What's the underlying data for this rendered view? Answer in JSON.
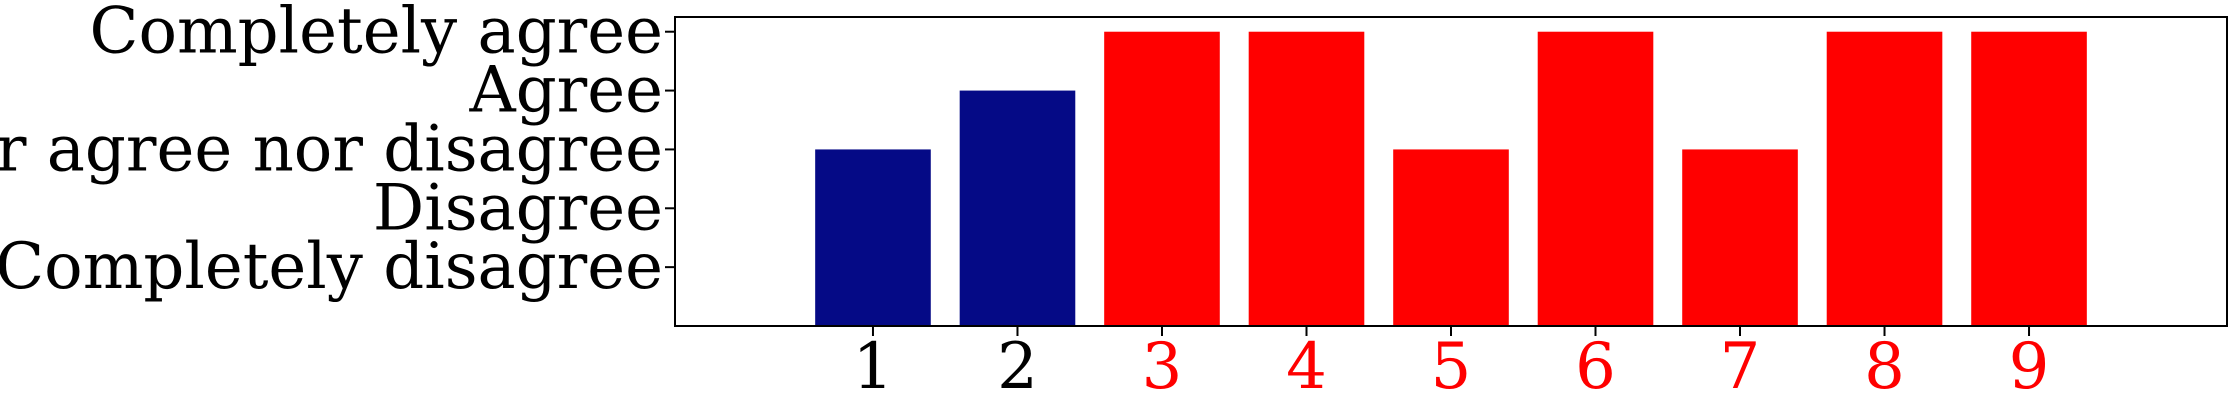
{
  "chart_data": {
    "type": "bar",
    "title": "",
    "xlabel": "",
    "ylabel": "",
    "categories": [
      "1",
      "2",
      "3",
      "4",
      "5",
      "6",
      "7",
      "8",
      "9"
    ],
    "values": [
      3,
      4,
      5,
      5,
      3,
      5,
      3,
      5,
      5
    ],
    "y_ticks": [
      {
        "value": 1,
        "label": "Completely disagree"
      },
      {
        "value": 2,
        "label": "Disagree"
      },
      {
        "value": 3,
        "label": "Neither agree nor disagree"
      },
      {
        "value": 4,
        "label": "Agree"
      },
      {
        "value": 5,
        "label": "Completely agree"
      }
    ],
    "ylim": [
      0,
      5.25
    ],
    "bar_colors": [
      "#050A86",
      "#050A86",
      "#FF0000",
      "#FF0000",
      "#FF0000",
      "#FF0000",
      "#FF0000",
      "#FF0000",
      "#FF0000"
    ],
    "x_tick_colors": [
      "#000000",
      "#000000",
      "#FF0000",
      "#FF0000",
      "#FF0000",
      "#FF0000",
      "#FF0000",
      "#FF0000",
      "#FF0000"
    ],
    "grid": false,
    "legend": "none"
  }
}
